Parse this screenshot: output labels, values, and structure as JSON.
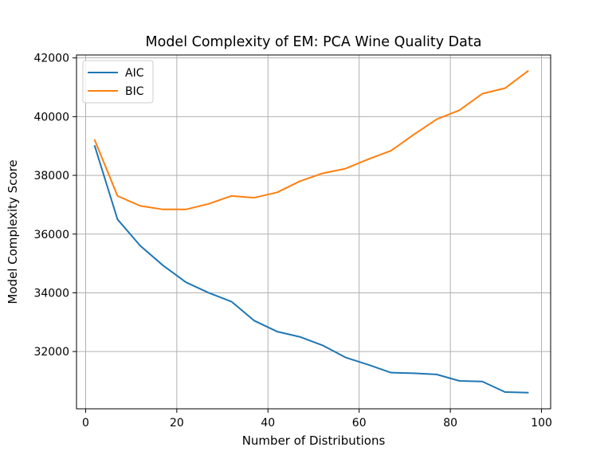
{
  "chart_data": {
    "type": "line",
    "title": "Model Complexity of EM: PCA Wine Quality Data",
    "xlabel": "Number of Distributions",
    "ylabel": "Model Complexity Score",
    "xlim": [
      -2,
      102
    ],
    "ylim": [
      30050,
      42100
    ],
    "xticks": [
      0,
      20,
      40,
      60,
      80,
      100
    ],
    "yticks": [
      32000,
      34000,
      36000,
      38000,
      40000,
      42000
    ],
    "xtick_labels": [
      "0",
      "20",
      "40",
      "60",
      "80",
      "100"
    ],
    "ytick_labels": [
      "32000",
      "34000",
      "36000",
      "38000",
      "40000",
      "42000"
    ],
    "grid": true,
    "legend_position": "top-left",
    "x": [
      2,
      7,
      12,
      17,
      22,
      27,
      32,
      37,
      42,
      47,
      52,
      57,
      62,
      67,
      72,
      77,
      82,
      87,
      92,
      97
    ],
    "series": [
      {
        "name": "AIC",
        "color": "#1f77b4",
        "values": [
          39000,
          36500,
          35600,
          34930,
          34360,
          34000,
          33700,
          33050,
          32680,
          32500,
          32210,
          31800,
          31550,
          31280,
          31260,
          31220,
          31000,
          30980,
          30620,
          30600
        ]
      },
      {
        "name": "BIC",
        "color": "#ff7f0e",
        "values": [
          39200,
          37300,
          36960,
          36840,
          36840,
          37030,
          37300,
          37240,
          37420,
          37800,
          38070,
          38230,
          38550,
          38840,
          39390,
          39910,
          40220,
          40780,
          40970,
          41550
        ]
      }
    ]
  }
}
